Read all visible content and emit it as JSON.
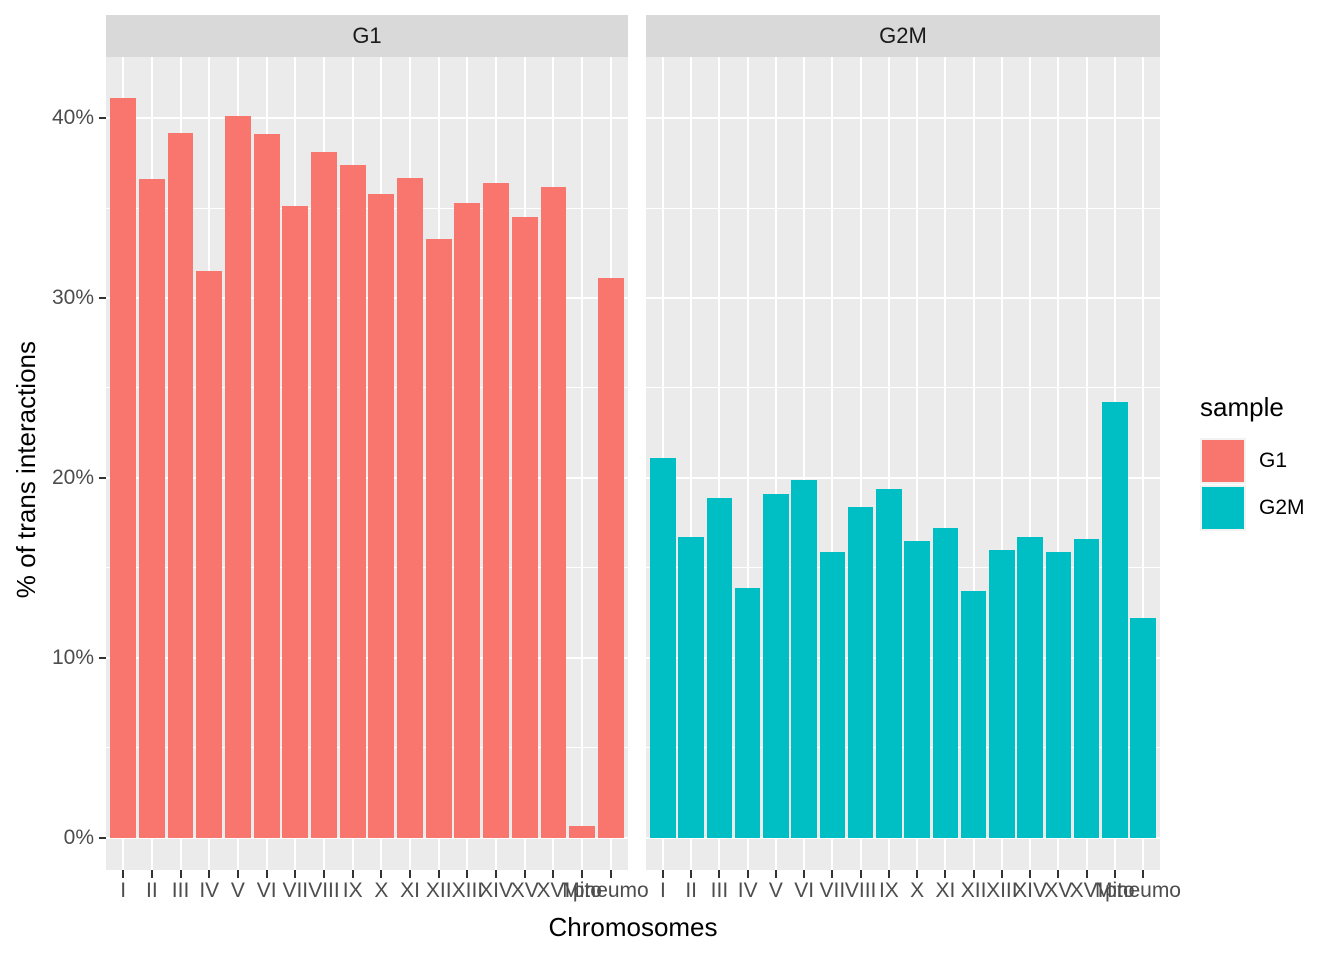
{
  "chart_data": {
    "type": "bar",
    "title": "",
    "xlabel": "Chromosomes",
    "ylabel": "% of trans interactions",
    "categories": [
      "I",
      "II",
      "III",
      "IV",
      "V",
      "VI",
      "VII",
      "VIII",
      "IX",
      "X",
      "XI",
      "XII",
      "XIII",
      "XIV",
      "XV",
      "XVI",
      "Mito",
      "pneumo"
    ],
    "facets": [
      {
        "label": "G1",
        "series": "G1",
        "color": "#F8766D",
        "values": [
          41.1,
          36.6,
          39.2,
          31.5,
          40.1,
          39.1,
          35.1,
          38.1,
          37.4,
          35.8,
          36.7,
          33.3,
          35.3,
          36.4,
          34.5,
          36.2,
          0.65,
          31.1
        ]
      },
      {
        "label": "G2M",
        "series": "G2M",
        "color": "#00BFC4",
        "values": [
          21.1,
          16.7,
          18.9,
          13.9,
          19.1,
          19.9,
          15.9,
          18.4,
          19.4,
          16.5,
          17.2,
          13.7,
          16.0,
          16.7,
          15.9,
          16.6,
          24.2,
          12.2
        ]
      }
    ],
    "y_ticks": [
      {
        "value": 0,
        "label": "0%"
      },
      {
        "value": 10,
        "label": "10%"
      },
      {
        "value": 20,
        "label": "20%"
      },
      {
        "value": 30,
        "label": "30%"
      },
      {
        "value": 40,
        "label": "40%"
      }
    ],
    "y_minor_ticks": [
      5,
      15,
      25,
      35
    ],
    "ylim": [
      -1.8,
      43.4
    ],
    "grid": true,
    "legend_position": "right",
    "legend": {
      "title": "sample",
      "entries": [
        {
          "label": "G1",
          "color": "#F8766D"
        },
        {
          "label": "G2M",
          "color": "#00BFC4"
        }
      ]
    },
    "colors": {
      "panel_bg": "#EBEBEB",
      "strip_bg": "#D9D9D9",
      "gridline": "#FFFFFF",
      "tick_mark": "#333333",
      "tick_label": "#4D4D4D",
      "axis_title": "#000000"
    }
  }
}
